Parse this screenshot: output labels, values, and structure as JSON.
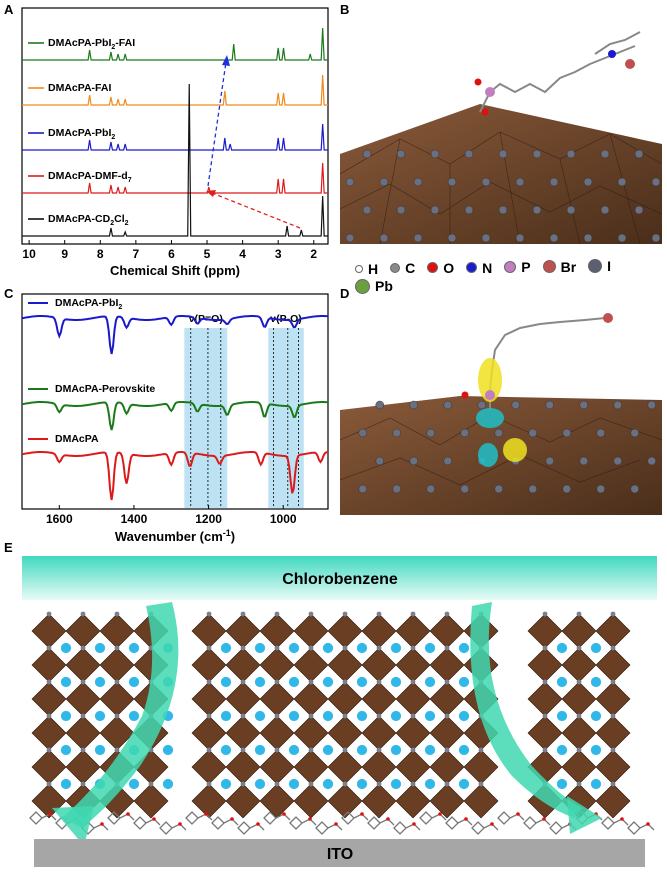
{
  "panels": {
    "a": {
      "letter": "A"
    },
    "b": {
      "letter": "B"
    },
    "c": {
      "letter": "C"
    },
    "d": {
      "letter": "D"
    },
    "e": {
      "letter": "E"
    }
  },
  "nmr": {
    "series": [
      {
        "name": "DMAcPA-PbI2-FAI",
        "label_main": "DMAcPA-PbI",
        "sub": "2",
        "label_tail": "-FAI",
        "color": "#1a7a1a"
      },
      {
        "name": "DMAcPA-FAI",
        "label_main": "DMAcPA-FAI",
        "sub": "",
        "label_tail": "",
        "color": "#f08a1a"
      },
      {
        "name": "DMAcPA-PbI2",
        "label_main": "DMAcPA-PbI",
        "sub": "2",
        "label_tail": "",
        "color": "#1a1acc"
      },
      {
        "name": "DMAcPA-DMF-d7",
        "label_main": "DMAcPA-DMF-d",
        "sub": "7",
        "label_tail": "",
        "color": "#dd1a1a"
      },
      {
        "name": "DMAcPA-CD2Cl2",
        "label_main": "DMAcPA-CD",
        "sub": "2",
        "label_tail": "Cl",
        "sub2": "2",
        "color": "#111111"
      }
    ],
    "xaxis": {
      "label": "Chemical Shift (ppm)",
      "ticks": [
        "10",
        "9",
        "8",
        "7",
        "6",
        "5",
        "4",
        "3",
        "2"
      ],
      "range": [
        10.2,
        1.6
      ]
    }
  },
  "legend": {
    "items": [
      {
        "symbol": "H",
        "color": "#ffffff"
      },
      {
        "symbol": "C",
        "color": "#8a8a8a"
      },
      {
        "symbol": "O",
        "color": "#e01010"
      },
      {
        "symbol": "N",
        "color": "#1a1ad0"
      },
      {
        "symbol": "P",
        "color": "#c080c0"
      },
      {
        "symbol": "Br",
        "color": "#c05050"
      },
      {
        "symbol": "I",
        "color": "#5a6070"
      },
      {
        "symbol": "Pb",
        "color": "#6aa040"
      }
    ]
  },
  "ftir": {
    "series": [
      {
        "name": "DMAcPA-PbI2",
        "label_main": "DMAcPA-PbI",
        "sub": "2",
        "color": "#1a1acc"
      },
      {
        "name": "DMAcPA-Perovskite",
        "label_main": "DMAcPA-Perovskite",
        "sub": "",
        "color": "#1a7a1a"
      },
      {
        "name": "DMAcPA",
        "label_main": "DMAcPA",
        "sub": "",
        "color": "#dd1a1a"
      }
    ],
    "bands": [
      {
        "label": "ν(P=O)",
        "from": 1265,
        "to": 1150
      },
      {
        "label": "ν(P-O)",
        "from": 1040,
        "to": 945
      }
    ],
    "xaxis": {
      "label_main": "Wavenumber (cm",
      "label_sup": "-1",
      "label_tail": ")",
      "ticks": [
        "1600",
        "1400",
        "1200",
        "1000"
      ],
      "range": [
        1700,
        880
      ]
    }
  },
  "schematic": {
    "top_label": "Chlorobenzene",
    "bottom_label": "ITO"
  }
}
